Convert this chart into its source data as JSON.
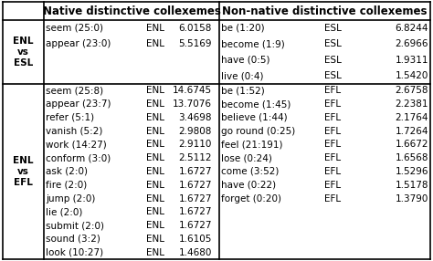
{
  "title_native": "Native distinctive collexemes",
  "title_nonnative": "Non-native distinctive collexemes",
  "row_labels": [
    "ENL\nvs\nESL",
    "ENL\nvs\nEFL"
  ],
  "native_esl": [
    [
      "seem (25:0)",
      "ENL",
      "6.0158"
    ],
    [
      "appear (23:0)",
      "ENL",
      "5.5169"
    ]
  ],
  "nonnative_esl": [
    [
      "be (1:20)",
      "ESL",
      "6.8244"
    ],
    [
      "become (1:9)",
      "ESL",
      "2.6966"
    ],
    [
      "have (0:5)",
      "ESL",
      "1.9311"
    ],
    [
      "live (0:4)",
      "ESL",
      "1.5420"
    ]
  ],
  "native_efl": [
    [
      "seem (25:8)",
      "ENL",
      "14.6745"
    ],
    [
      "appear (23:7)",
      "ENL",
      "13.7076"
    ],
    [
      "refer (5:1)",
      "ENL",
      "3.4698"
    ],
    [
      "vanish (5:2)",
      "ENL",
      "2.9808"
    ],
    [
      "work (14:27)",
      "ENL",
      "2.9110"
    ],
    [
      "conform (3:0)",
      "ENL",
      "2.5112"
    ],
    [
      "ask (2:0)",
      "ENL",
      "1.6727"
    ],
    [
      "fire (2:0)",
      "ENL",
      "1.6727"
    ],
    [
      "jump (2:0)",
      "ENL",
      "1.6727"
    ],
    [
      "lie (2:0)",
      "ENL",
      "1.6727"
    ],
    [
      "submit (2:0)",
      "ENL",
      "1.6727"
    ],
    [
      "sound (3:2)",
      "ENL",
      "1.6105"
    ],
    [
      "look (10:27)",
      "ENL",
      "1.4680"
    ]
  ],
  "nonnative_efl": [
    [
      "be (1:52)",
      "EFL",
      "2.6758"
    ],
    [
      "become (1:45)",
      "EFL",
      "2.2381"
    ],
    [
      "believe (1:44)",
      "EFL",
      "2.1764"
    ],
    [
      "go round (0:25)",
      "EFL",
      "1.7264"
    ],
    [
      "feel (21:191)",
      "EFL",
      "1.6672"
    ],
    [
      "lose (0:24)",
      "EFL",
      "1.6568"
    ],
    [
      "come (3:52)",
      "EFL",
      "1.5296"
    ],
    [
      "have (0:22)",
      "EFL",
      "1.5178"
    ],
    [
      "forget (0:20)",
      "EFL",
      "1.3790"
    ]
  ],
  "bg_color": "#ffffff",
  "text_color": "#000000",
  "header_fontsize": 8.5,
  "cell_fontsize": 7.5,
  "row_label_fontsize": 7.5,
  "fig_width": 4.74,
  "fig_height": 2.86,
  "dpi": 100
}
